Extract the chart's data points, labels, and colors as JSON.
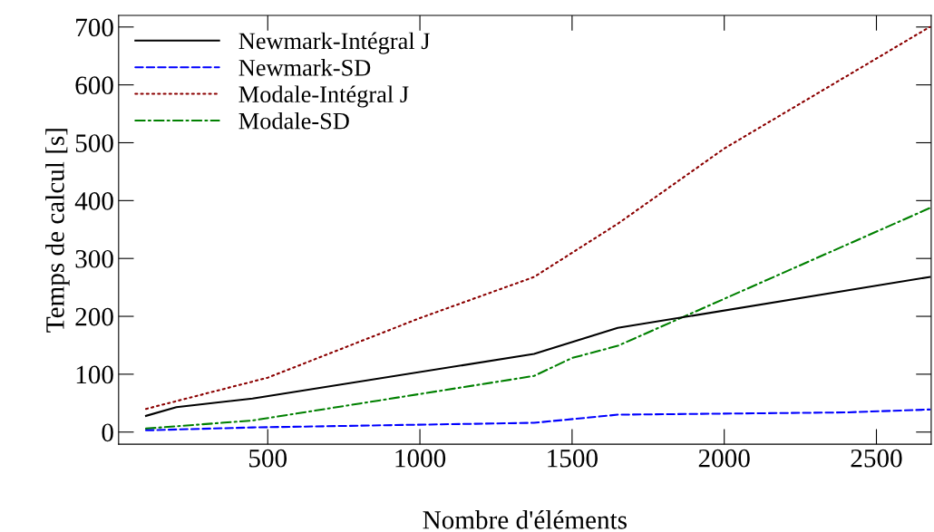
{
  "chart_data": {
    "type": "line",
    "xlabel": "Nombre d'éléments",
    "ylabel": "Temps de calcul [s]",
    "xlim": [
      10,
      2680
    ],
    "ylim": [
      -21,
      720
    ],
    "xticks": [
      500,
      1000,
      1500,
      2000,
      2500
    ],
    "yticks": [
      0,
      100,
      200,
      300,
      400,
      500,
      600,
      700
    ],
    "grid": false,
    "legend": "top left",
    "series": [
      {
        "name": "Newmark-Intégral J",
        "color": "#000000",
        "line_style": "solid",
        "x": [
          100,
          200,
          450,
          1375,
          1650,
          2675
        ],
        "values": [
          28,
          43,
          58,
          135,
          180,
          268
        ]
      },
      {
        "name": "Newmark-SD",
        "color": "#0000ff",
        "line_style": "dashed",
        "x": [
          100,
          450,
          1375,
          1650,
          2400,
          2675
        ],
        "values": [
          3,
          8,
          16,
          30,
          34,
          39
        ]
      },
      {
        "name": "Modale-Intégral J",
        "color": "#8b0000",
        "line_style": "dotted",
        "x": [
          100,
          500,
          1000,
          1375,
          1650,
          2000,
          2675
        ],
        "values": [
          40,
          94,
          197,
          268,
          360,
          490,
          700
        ]
      },
      {
        "name": "Modale-SD",
        "color": "#008000",
        "line_style": "dashdot",
        "x": [
          100,
          200,
          450,
          1375,
          1500,
          1650,
          2675
        ],
        "values": [
          6,
          10,
          20,
          97,
          128,
          149,
          387
        ]
      }
    ]
  }
}
